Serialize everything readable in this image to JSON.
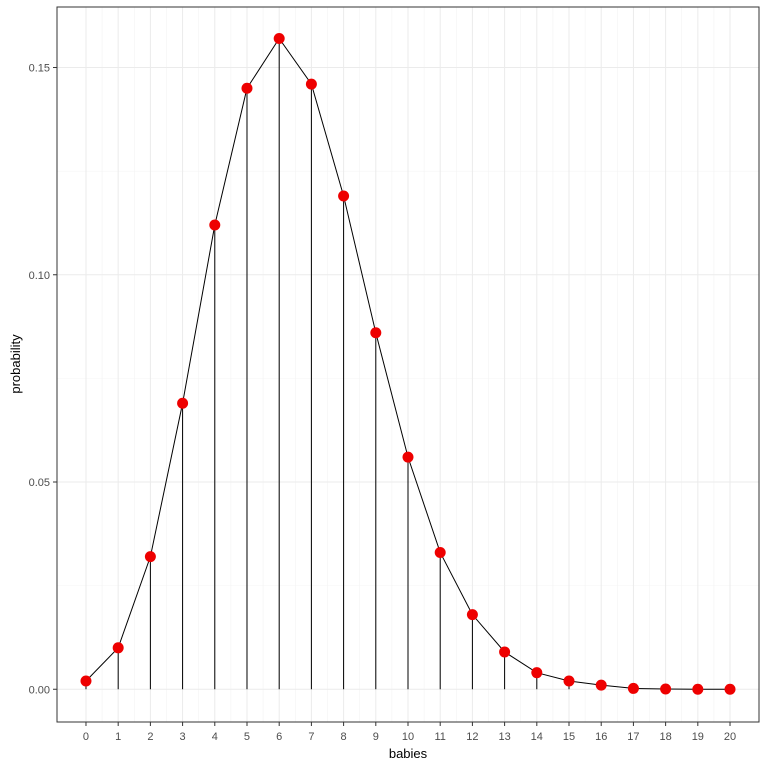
{
  "chart_data": {
    "type": "scatter",
    "style": "lollipop with connecting line",
    "title": "",
    "xlabel": "babies",
    "ylabel": "probability",
    "xlim": [
      -0.9,
      20.9
    ],
    "ylim": [
      -0.0079,
      0.1646
    ],
    "grid": true,
    "legend": "none",
    "x_ticks": [
      0,
      1,
      2,
      3,
      4,
      5,
      6,
      7,
      8,
      9,
      10,
      11,
      12,
      13,
      14,
      15,
      16,
      17,
      18,
      19,
      20
    ],
    "x_tick_labels": [
      "0",
      "1",
      "2",
      "3",
      "4",
      "5",
      "6",
      "7",
      "8",
      "9",
      "10",
      "11",
      "12",
      "13",
      "14",
      "15",
      "16",
      "17",
      "18",
      "19",
      "20"
    ],
    "y_ticks": [
      0.0,
      0.05,
      0.1,
      0.15
    ],
    "y_tick_labels": [
      "0.00",
      "0.05",
      "0.10",
      "0.15"
    ],
    "x": [
      0,
      1,
      2,
      3,
      4,
      5,
      6,
      7,
      8,
      9,
      10,
      11,
      12,
      13,
      14,
      15,
      16,
      17,
      18,
      19,
      20
    ],
    "y": [
      0.002,
      0.01,
      0.032,
      0.069,
      0.112,
      0.145,
      0.157,
      0.146,
      0.119,
      0.086,
      0.056,
      0.033,
      0.018,
      0.009,
      0.004,
      0.002,
      0.001,
      0.0002,
      5e-05,
      1e-05,
      0.0
    ],
    "colors": {
      "point": "#ee0000",
      "line": "#000000",
      "segment": "#000000",
      "grid_major": "#ebebeb",
      "grid_minor": "#f4f4f4",
      "panel_border": "#333333",
      "tick_text": "#4d4d4d"
    }
  }
}
